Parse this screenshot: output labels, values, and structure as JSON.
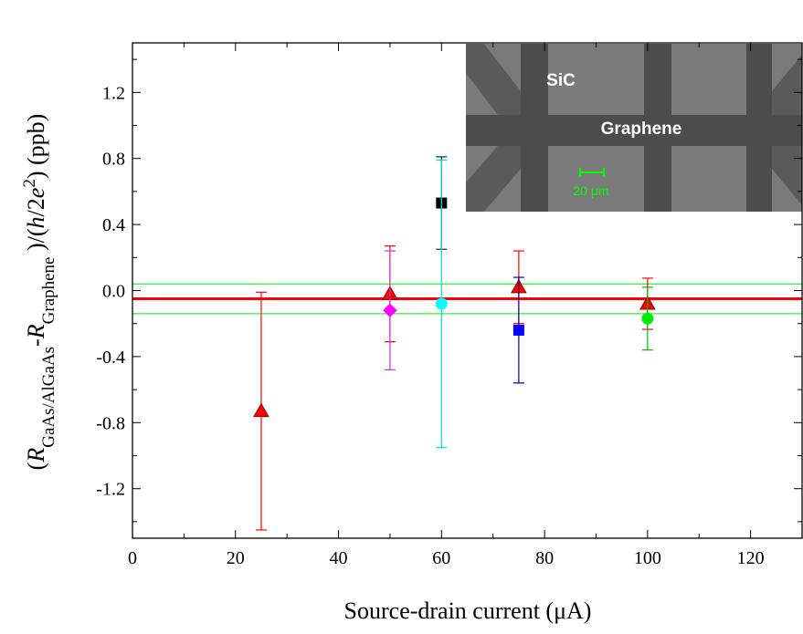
{
  "chart_data": {
    "type": "scatter",
    "xlabel": "Source-drain current (μA)",
    "ylabel": [
      "(",
      "R",
      "GaAs/AlGaAs",
      "-",
      "R",
      "Graphene",
      " )/(",
      "h",
      "/2",
      "e",
      "2",
      ")  (ppb)"
    ],
    "xlim": [
      0,
      130
    ],
    "xticks": [
      0,
      20,
      40,
      60,
      80,
      100,
      120
    ],
    "ylim": [
      -1.5,
      1.5
    ],
    "yticks": [
      -1.2,
      -0.8,
      -0.4,
      {
        "value": 0,
        "label": "0.0"
      },
      0.4,
      0.8,
      1.2
    ],
    "hlines": [
      {
        "value": -0.05,
        "color": "#ff0000",
        "width": 3
      },
      {
        "value": 0.04,
        "color": "#00ee00",
        "width": 1
      },
      {
        "value": -0.14,
        "color": "#00ee00",
        "width": 1
      }
    ],
    "series": [
      {
        "marker": "triangle",
        "color": "#ff0000",
        "error_color": "#ff0000",
        "x": [
          25,
          50,
          75,
          100
        ],
        "values": [
          -0.73,
          -0.02,
          0.02,
          -0.08
        ],
        "errors": [
          0.72,
          0.29,
          0.22,
          0.155
        ]
      },
      {
        "marker": "diamond",
        "color": "#ff00ff",
        "error_color": "#cc33cc",
        "x": [
          50
        ],
        "values": [
          -0.12
        ],
        "errors": [
          0.36
        ]
      },
      {
        "marker": "square",
        "color": "#000000",
        "error_color": "#003333",
        "x": [
          60
        ],
        "values": [
          0.53
        ],
        "errors": [
          0.28
        ]
      },
      {
        "marker": "circle",
        "color": "#00ffff",
        "error_color": "#00dddd",
        "x": [
          60
        ],
        "values": [
          -0.08
        ],
        "errors": [
          0.87
        ]
      },
      {
        "marker": "square",
        "color": "#0000ff",
        "error_color": "#0000aa",
        "x": [
          75
        ],
        "values": [
          -0.24
        ],
        "errors": [
          0.32
        ]
      },
      {
        "marker": "circle",
        "color": "#00ee00",
        "error_color": "#00bb00",
        "x": [
          100
        ],
        "values": [
          -0.17
        ],
        "errors": [
          0.19
        ]
      }
    ],
    "inset": {
      "labels": [
        "SiC",
        "Graphene",
        "20 μm"
      ]
    }
  }
}
